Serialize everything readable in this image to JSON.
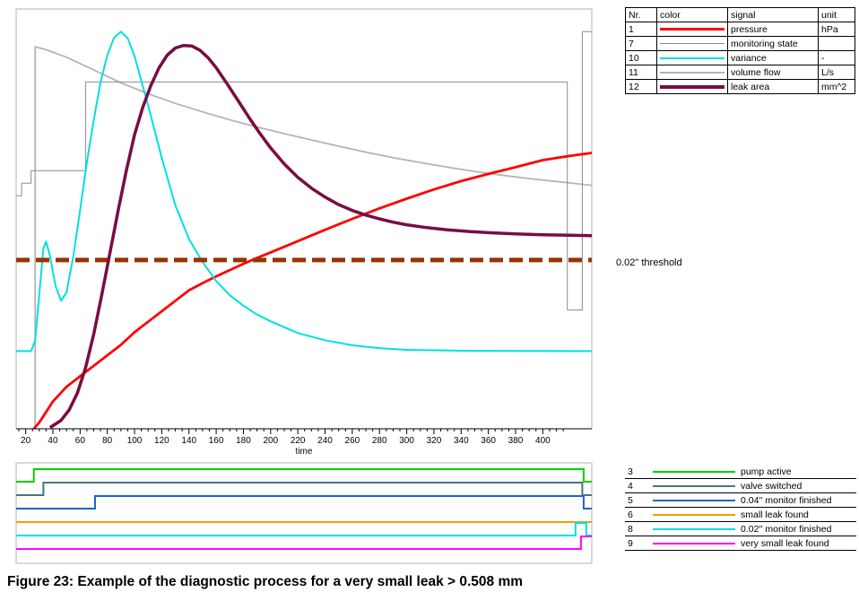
{
  "caption": "Figure 23: Example of the diagnostic process for a very small leak > 0.508 mm",
  "threshold_label": "0.02\" threshold",
  "legend_main": {
    "headers": {
      "nr": "Nr.",
      "color": "color",
      "signal": "signal",
      "unit": "unit"
    },
    "rows": [
      {
        "nr": "1",
        "signal": "pressure",
        "unit": "hPa",
        "color": "#ff0000"
      },
      {
        "nr": "7",
        "signal": "monitoring state",
        "unit": "",
        "color": "#8c8c8c"
      },
      {
        "nr": "10",
        "signal": "variance",
        "unit": "-",
        "color": "#00e0e0"
      },
      {
        "nr": "11",
        "signal": "volume flow",
        "unit": "L/s",
        "color": "#b4b4b4"
      },
      {
        "nr": "12",
        "signal": "leak area",
        "unit": "mm^2",
        "color": "#7a0c43"
      }
    ]
  },
  "legend_digital": {
    "rows": [
      {
        "nr": "3",
        "label": "pump active",
        "color": "#00d000"
      },
      {
        "nr": "4",
        "label": "valve switched",
        "color": "#4d7282"
      },
      {
        "nr": "5",
        "label": "0.04'' monitor finished",
        "color": "#1a66cc"
      },
      {
        "nr": "6",
        "label": "small leak found",
        "color": "#ff9900"
      },
      {
        "nr": "8",
        "label": "0.02'' monitor finished",
        "color": "#00e0e0"
      },
      {
        "nr": "9",
        "label": "very small leak found",
        "color": "#ff00ff"
      }
    ]
  },
  "chart_data": [
    {
      "type": "line",
      "title": "",
      "xlabel": "time",
      "ylabel": "",
      "y_axis_note": "no y-axis scale shown in figure; values normalized 0-1 of plot height",
      "xlim": [
        13,
        436
      ],
      "ylim": [
        0,
        1
      ],
      "x_ticks": [
        20,
        40,
        60,
        80,
        100,
        120,
        140,
        160,
        180,
        200,
        220,
        240,
        260,
        280,
        300,
        320,
        340,
        360,
        380,
        400
      ],
      "grid": false,
      "legend_position": "outside-right-table",
      "threshold": {
        "label": "0.02\" threshold",
        "y": 0.402,
        "color": "#993300",
        "style": "dashed"
      },
      "series": [
        {
          "name": "volume flow",
          "unit": "L/s",
          "color": "#b4b4b4",
          "width": 1.8,
          "points": [
            [
              27,
              0.0
            ],
            [
              27,
              0.91
            ],
            [
              35,
              0.903
            ],
            [
              50,
              0.885
            ],
            [
              70,
              0.855
            ],
            [
              90,
              0.824
            ],
            [
              110,
              0.798
            ],
            [
              130,
              0.775
            ],
            [
              150,
              0.755
            ],
            [
              170,
              0.736
            ],
            [
              190,
              0.719
            ],
            [
              210,
              0.703
            ],
            [
              230,
              0.688
            ],
            [
              250,
              0.673
            ],
            [
              270,
              0.659
            ],
            [
              290,
              0.646
            ],
            [
              310,
              0.634
            ],
            [
              330,
              0.623
            ],
            [
              350,
              0.613
            ],
            [
              370,
              0.604
            ],
            [
              390,
              0.596
            ],
            [
              410,
              0.589
            ],
            [
              436,
              0.58
            ]
          ]
        },
        {
          "name": "monitoring state",
          "unit": "",
          "color": "#8c8c8c",
          "width": 1,
          "points": [
            [
              13,
              0.555
            ],
            [
              17,
              0.555
            ],
            [
              17,
              0.585
            ],
            [
              24,
              0.585
            ],
            [
              24,
              0.615
            ],
            [
              64,
              0.615
            ],
            [
              64,
              0.826
            ],
            [
              418,
              0.826
            ],
            [
              418,
              0.283
            ],
            [
              429,
              0.283
            ],
            [
              429,
              0.946
            ],
            [
              436,
              0.946
            ]
          ]
        },
        {
          "name": "pressure",
          "unit": "hPa",
          "color": "#ff0000",
          "width": 2.8,
          "points": [
            [
              26,
              0.0
            ],
            [
              30,
              0.015
            ],
            [
              35,
              0.04
            ],
            [
              40,
              0.065
            ],
            [
              50,
              0.1
            ],
            [
              60,
              0.125
            ],
            [
              70,
              0.15
            ],
            [
              80,
              0.175
            ],
            [
              90,
              0.2
            ],
            [
              100,
              0.23
            ],
            [
              110,
              0.255
            ],
            [
              120,
              0.28
            ],
            [
              130,
              0.305
            ],
            [
              140,
              0.33
            ],
            [
              150,
              0.347
            ],
            [
              160,
              0.363
            ],
            [
              170,
              0.378
            ],
            [
              180,
              0.393
            ],
            [
              190,
              0.407
            ],
            [
              200,
              0.42
            ],
            [
              220,
              0.447
            ],
            [
              240,
              0.474
            ],
            [
              260,
              0.5
            ],
            [
              280,
              0.525
            ],
            [
              300,
              0.548
            ],
            [
              320,
              0.57
            ],
            [
              340,
              0.59
            ],
            [
              360,
              0.607
            ],
            [
              380,
              0.623
            ],
            [
              400,
              0.64
            ],
            [
              420,
              0.65
            ],
            [
              436,
              0.657
            ]
          ]
        },
        {
          "name": "variance",
          "unit": "-",
          "color": "#00e0e0",
          "width": 2,
          "points": [
            [
              13,
              0.185
            ],
            [
              24,
              0.185
            ],
            [
              27,
              0.21
            ],
            [
              30,
              0.32
            ],
            [
              33,
              0.43
            ],
            [
              35,
              0.446
            ],
            [
              38,
              0.41
            ],
            [
              42,
              0.34
            ],
            [
              46,
              0.305
            ],
            [
              50,
              0.325
            ],
            [
              55,
              0.41
            ],
            [
              60,
              0.52
            ],
            [
              65,
              0.635
            ],
            [
              70,
              0.735
            ],
            [
              75,
              0.825
            ],
            [
              80,
              0.89
            ],
            [
              85,
              0.932
            ],
            [
              90,
              0.946
            ],
            [
              95,
              0.93
            ],
            [
              100,
              0.888
            ],
            [
              110,
              0.77
            ],
            [
              120,
              0.645
            ],
            [
              130,
              0.532
            ],
            [
              140,
              0.452
            ],
            [
              150,
              0.397
            ],
            [
              160,
              0.352
            ],
            [
              170,
              0.318
            ],
            [
              180,
              0.293
            ],
            [
              190,
              0.272
            ],
            [
              200,
              0.256
            ],
            [
              220,
              0.228
            ],
            [
              240,
              0.211
            ],
            [
              260,
              0.199
            ],
            [
              280,
              0.192
            ],
            [
              300,
              0.188
            ],
            [
              340,
              0.186
            ],
            [
              436,
              0.185
            ]
          ]
        },
        {
          "name": "leak area",
          "unit": "mm^2",
          "color": "#7a0c43",
          "width": 3.5,
          "points": [
            [
              38,
              0.003
            ],
            [
              46,
              0.02
            ],
            [
              52,
              0.045
            ],
            [
              58,
              0.085
            ],
            [
              64,
              0.145
            ],
            [
              70,
              0.225
            ],
            [
              76,
              0.32
            ],
            [
              82,
              0.42
            ],
            [
              88,
              0.52
            ],
            [
              94,
              0.615
            ],
            [
              100,
              0.7
            ],
            [
              106,
              0.765
            ],
            [
              112,
              0.818
            ],
            [
              118,
              0.86
            ],
            [
              124,
              0.89
            ],
            [
              130,
              0.907
            ],
            [
              136,
              0.913
            ],
            [
              142,
              0.912
            ],
            [
              148,
              0.902
            ],
            [
              154,
              0.884
            ],
            [
              160,
              0.86
            ],
            [
              168,
              0.822
            ],
            [
              176,
              0.782
            ],
            [
              184,
              0.742
            ],
            [
              192,
              0.704
            ],
            [
              200,
              0.669
            ],
            [
              210,
              0.631
            ],
            [
              220,
              0.599
            ],
            [
              230,
              0.573
            ],
            [
              240,
              0.552
            ],
            [
              250,
              0.534
            ],
            [
              260,
              0.52
            ],
            [
              270,
              0.509
            ],
            [
              280,
              0.5
            ],
            [
              290,
              0.492
            ],
            [
              300,
              0.486
            ],
            [
              315,
              0.479
            ],
            [
              330,
              0.474
            ],
            [
              345,
              0.47
            ],
            [
              360,
              0.467
            ],
            [
              380,
              0.464
            ],
            [
              400,
              0.462
            ],
            [
              420,
              0.461
            ],
            [
              436,
              0.46
            ]
          ]
        }
      ]
    },
    {
      "type": "digital",
      "xlim": [
        13,
        436
      ],
      "signals": [
        {
          "name": "pump active",
          "color": "#00d000",
          "high": [
            [
              26,
              430
            ]
          ]
        },
        {
          "name": "valve switched",
          "color": "#4d7282",
          "high": [
            [
              33,
              429
            ]
          ]
        },
        {
          "name": "0.04'' monitor finished",
          "color": "#1a66cc",
          "high": [
            [
              71,
              430
            ]
          ]
        },
        {
          "name": "small leak found",
          "color": "#ff9900",
          "high": []
        },
        {
          "name": "0.02'' monitor finished",
          "color": "#00e0e0",
          "high": [
            [
              424,
              432
            ]
          ]
        },
        {
          "name": "very small leak found",
          "color": "#ff00ff",
          "high": [
            [
              428,
              436
            ]
          ]
        }
      ]
    }
  ]
}
